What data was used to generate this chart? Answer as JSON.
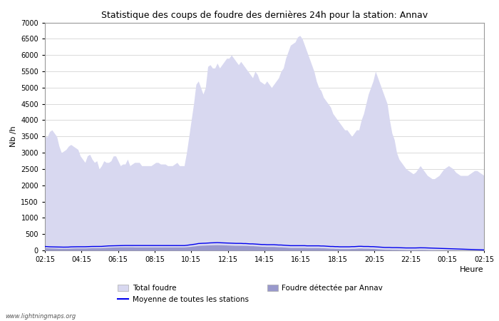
{
  "title": "Statistique des coups de foudre des dernières 24h pour la station: Annav",
  "ylabel": "Nb /h",
  "xlabel": "Heure",
  "watermark": "www.lightningmaps.org",
  "ylim": [
    0,
    7000
  ],
  "yticks": [
    0,
    500,
    1000,
    1500,
    2000,
    2500,
    3000,
    3500,
    4000,
    4500,
    5000,
    5500,
    6000,
    6500,
    7000
  ],
  "xtick_labels": [
    "02:15",
    "04:15",
    "06:15",
    "08:15",
    "10:15",
    "12:15",
    "14:15",
    "16:15",
    "18:15",
    "20:15",
    "22:15",
    "00:15",
    "02:15"
  ],
  "bg_color": "#ffffff",
  "fill_total_color": "#d8d8f0",
  "fill_annav_color": "#9999cc",
  "line_moyenne_color": "#0000ee",
  "legend_total": "Total foudre",
  "legend_moyenne": "Moyenne de toutes les stations",
  "legend_annav": "Foudre détectée par Annav",
  "total_foudre": [
    3500,
    3480,
    3650,
    3700,
    3600,
    3500,
    3200,
    3000,
    3050,
    3100,
    3200,
    3250,
    3200,
    3150,
    3100,
    2900,
    2800,
    2700,
    2900,
    2950,
    2800,
    2700,
    2750,
    2500,
    2600,
    2750,
    2700,
    2700,
    2750,
    2900,
    2900,
    2750,
    2600,
    2650,
    2650,
    2800,
    2600,
    2650,
    2700,
    2700,
    2700,
    2600,
    2600,
    2600,
    2600,
    2600,
    2650,
    2700,
    2700,
    2650,
    2650,
    2650,
    2600,
    2600,
    2600,
    2650,
    2700,
    2600,
    2600,
    2600,
    3000,
    3500,
    4000,
    4500,
    5100,
    5200,
    5000,
    4800,
    5000,
    5650,
    5700,
    5600,
    5600,
    5750,
    5600,
    5700,
    5800,
    5900,
    5900,
    6000,
    5900,
    5800,
    5700,
    5800,
    5700,
    5600,
    5500,
    5400,
    5300,
    5500,
    5400,
    5200,
    5150,
    5100,
    5200,
    5100,
    5000,
    5100,
    5200,
    5300,
    5500,
    5600,
    5900,
    6100,
    6300,
    6350,
    6400,
    6550,
    6600,
    6500,
    6300,
    6100,
    5900,
    5700,
    5500,
    5200,
    5000,
    4900,
    4700,
    4600,
    4500,
    4400,
    4200,
    4100,
    4000,
    3900,
    3800,
    3700,
    3700,
    3600,
    3500,
    3600,
    3700,
    3700,
    4000,
    4200,
    4500,
    4800,
    5000,
    5200,
    5500,
    5300,
    5100,
    4900,
    4700,
    4500,
    4000,
    3600,
    3400,
    3000,
    2800,
    2700,
    2600,
    2500,
    2450,
    2400,
    2350,
    2400,
    2500,
    2600,
    2500,
    2400,
    2300,
    2250,
    2200,
    2200,
    2250,
    2300,
    2400,
    2500,
    2550,
    2600,
    2550,
    2500,
    2400,
    2350,
    2300,
    2300,
    2300,
    2300,
    2350,
    2400,
    2450,
    2450,
    2400,
    2350,
    2300
  ],
  "moyenne": [
    120,
    115,
    110,
    108,
    105,
    102,
    100,
    100,
    100,
    100,
    102,
    108,
    110,
    112,
    112,
    112,
    112,
    112,
    115,
    118,
    120,
    120,
    120,
    120,
    122,
    128,
    132,
    138,
    140,
    142,
    145,
    148,
    150,
    150,
    150,
    150,
    150,
    150,
    148,
    148,
    148,
    148,
    148,
    148,
    148,
    148,
    148,
    148,
    148,
    148,
    148,
    148,
    148,
    148,
    148,
    148,
    148,
    148,
    148,
    148,
    155,
    165,
    175,
    185,
    195,
    210,
    215,
    218,
    220,
    225,
    230,
    232,
    235,
    238,
    235,
    232,
    228,
    225,
    222,
    220,
    218,
    215,
    215,
    215,
    210,
    210,
    205,
    200,
    200,
    195,
    190,
    185,
    180,
    180,
    175,
    175,
    175,
    175,
    170,
    165,
    165,
    160,
    155,
    150,
    145,
    145,
    145,
    145,
    145,
    145,
    145,
    140,
    140,
    140,
    140,
    140,
    140,
    135,
    135,
    130,
    125,
    120,
    120,
    115,
    115,
    110,
    110,
    110,
    110,
    110,
    115,
    115,
    120,
    125,
    125,
    120,
    120,
    120,
    115,
    115,
    110,
    105,
    100,
    95,
    90,
    90,
    90,
    85,
    85,
    85,
    82,
    80,
    78,
    75,
    75,
    75,
    75,
    75,
    78,
    80,
    80,
    78,
    75,
    72,
    70,
    68,
    65,
    62,
    60,
    58,
    55,
    52,
    50,
    48,
    45,
    42,
    40,
    38,
    35,
    32,
    30,
    28,
    25,
    22,
    20,
    18,
    15
  ],
  "annav": [
    80,
    75,
    72,
    70,
    68,
    65,
    62,
    60,
    60,
    60,
    62,
    65,
    68,
    70,
    70,
    70,
    70,
    70,
    72,
    75,
    78,
    78,
    78,
    78,
    80,
    85,
    88,
    92,
    95,
    98,
    100,
    102,
    105,
    105,
    105,
    105,
    105,
    105,
    102,
    102,
    102,
    102,
    102,
    102,
    102,
    102,
    102,
    102,
    102,
    102,
    102,
    102,
    102,
    102,
    102,
    102,
    102,
    102,
    102,
    102,
    108,
    115,
    122,
    130,
    138,
    148,
    152,
    155,
    158,
    162,
    165,
    168,
    170,
    172,
    170,
    168,
    165,
    162,
    158,
    155,
    152,
    150,
    150,
    150,
    148,
    148,
    145,
    140,
    140,
    135,
    130,
    125,
    120,
    120,
    115,
    115,
    115,
    115,
    110,
    105,
    105,
    100,
    95,
    90,
    85,
    85,
    85,
    85,
    85,
    85,
    85,
    80,
    80,
    80,
    80,
    80,
    80,
    75,
    75,
    70,
    65,
    60,
    60,
    55,
    55,
    50,
    50,
    50,
    50,
    50,
    55,
    55,
    60,
    65,
    65,
    60,
    60,
    60,
    55,
    55,
    50,
    45,
    40,
    35,
    30,
    30,
    30,
    25,
    25,
    25,
    22,
    20,
    18,
    15,
    15,
    15,
    15,
    15,
    18,
    20,
    20,
    18,
    15,
    12,
    10,
    8,
    5,
    5,
    5,
    5,
    5,
    5,
    5,
    5,
    5,
    5,
    5,
    5,
    5,
    5,
    5,
    5,
    5,
    5,
    5,
    5,
    5
  ]
}
